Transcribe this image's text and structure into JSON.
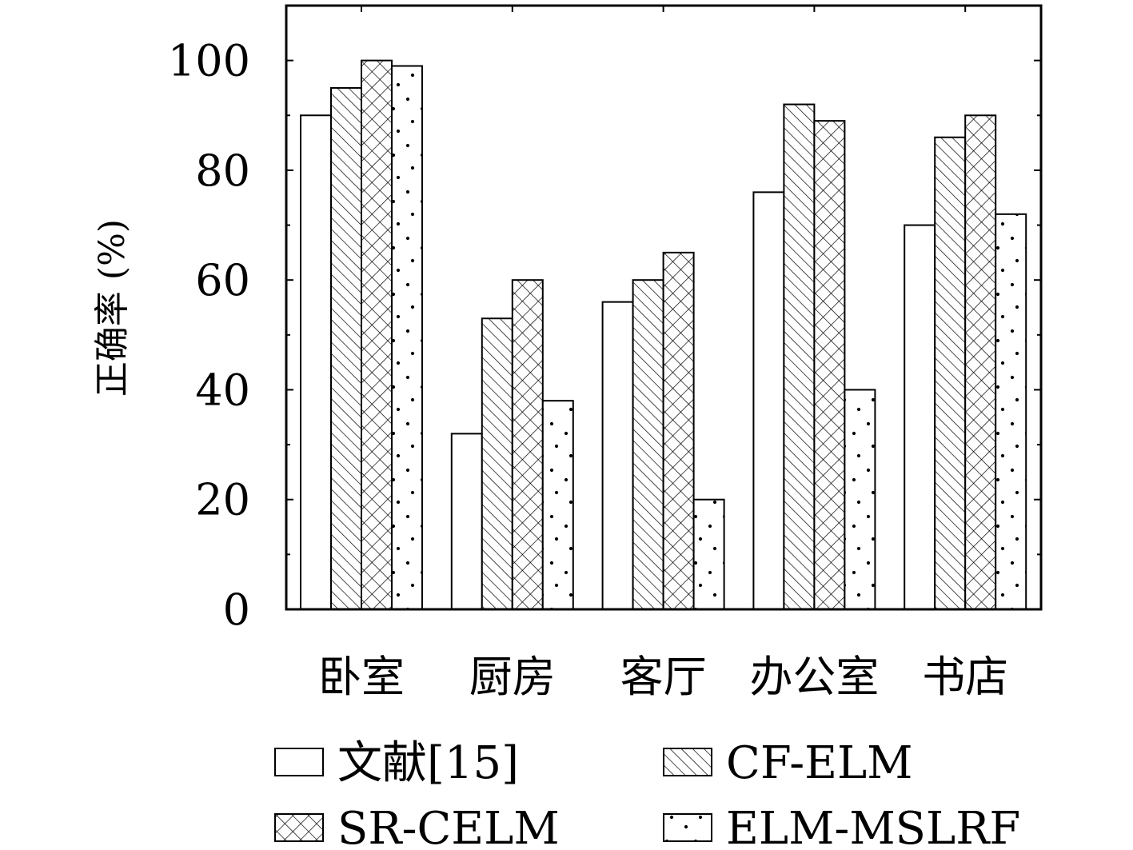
{
  "chart_data": {
    "type": "bar",
    "title": "",
    "xlabel": "",
    "ylabel": "正确率 (%)",
    "ylim": [
      0,
      110
    ],
    "yticks": [
      "0",
      "20",
      "40",
      "60",
      "80",
      "100"
    ],
    "categories": [
      "卧室",
      "厨房",
      "客厅",
      "办公室",
      "书店"
    ],
    "legend_position": "bottom",
    "series": [
      {
        "name": "文献[15]",
        "pattern": "blank",
        "values": [
          90,
          32,
          56,
          76,
          70
        ]
      },
      {
        "name": "CF-ELM",
        "pattern": "hatch",
        "values": [
          95,
          53,
          60,
          92,
          86
        ]
      },
      {
        "name": "SR-CELM",
        "pattern": "crosshatch",
        "values": [
          100,
          60,
          65,
          89,
          90
        ]
      },
      {
        "name": "ELM-MSLRF",
        "pattern": "dots",
        "values": [
          99,
          38,
          20,
          40,
          72
        ]
      }
    ]
  }
}
